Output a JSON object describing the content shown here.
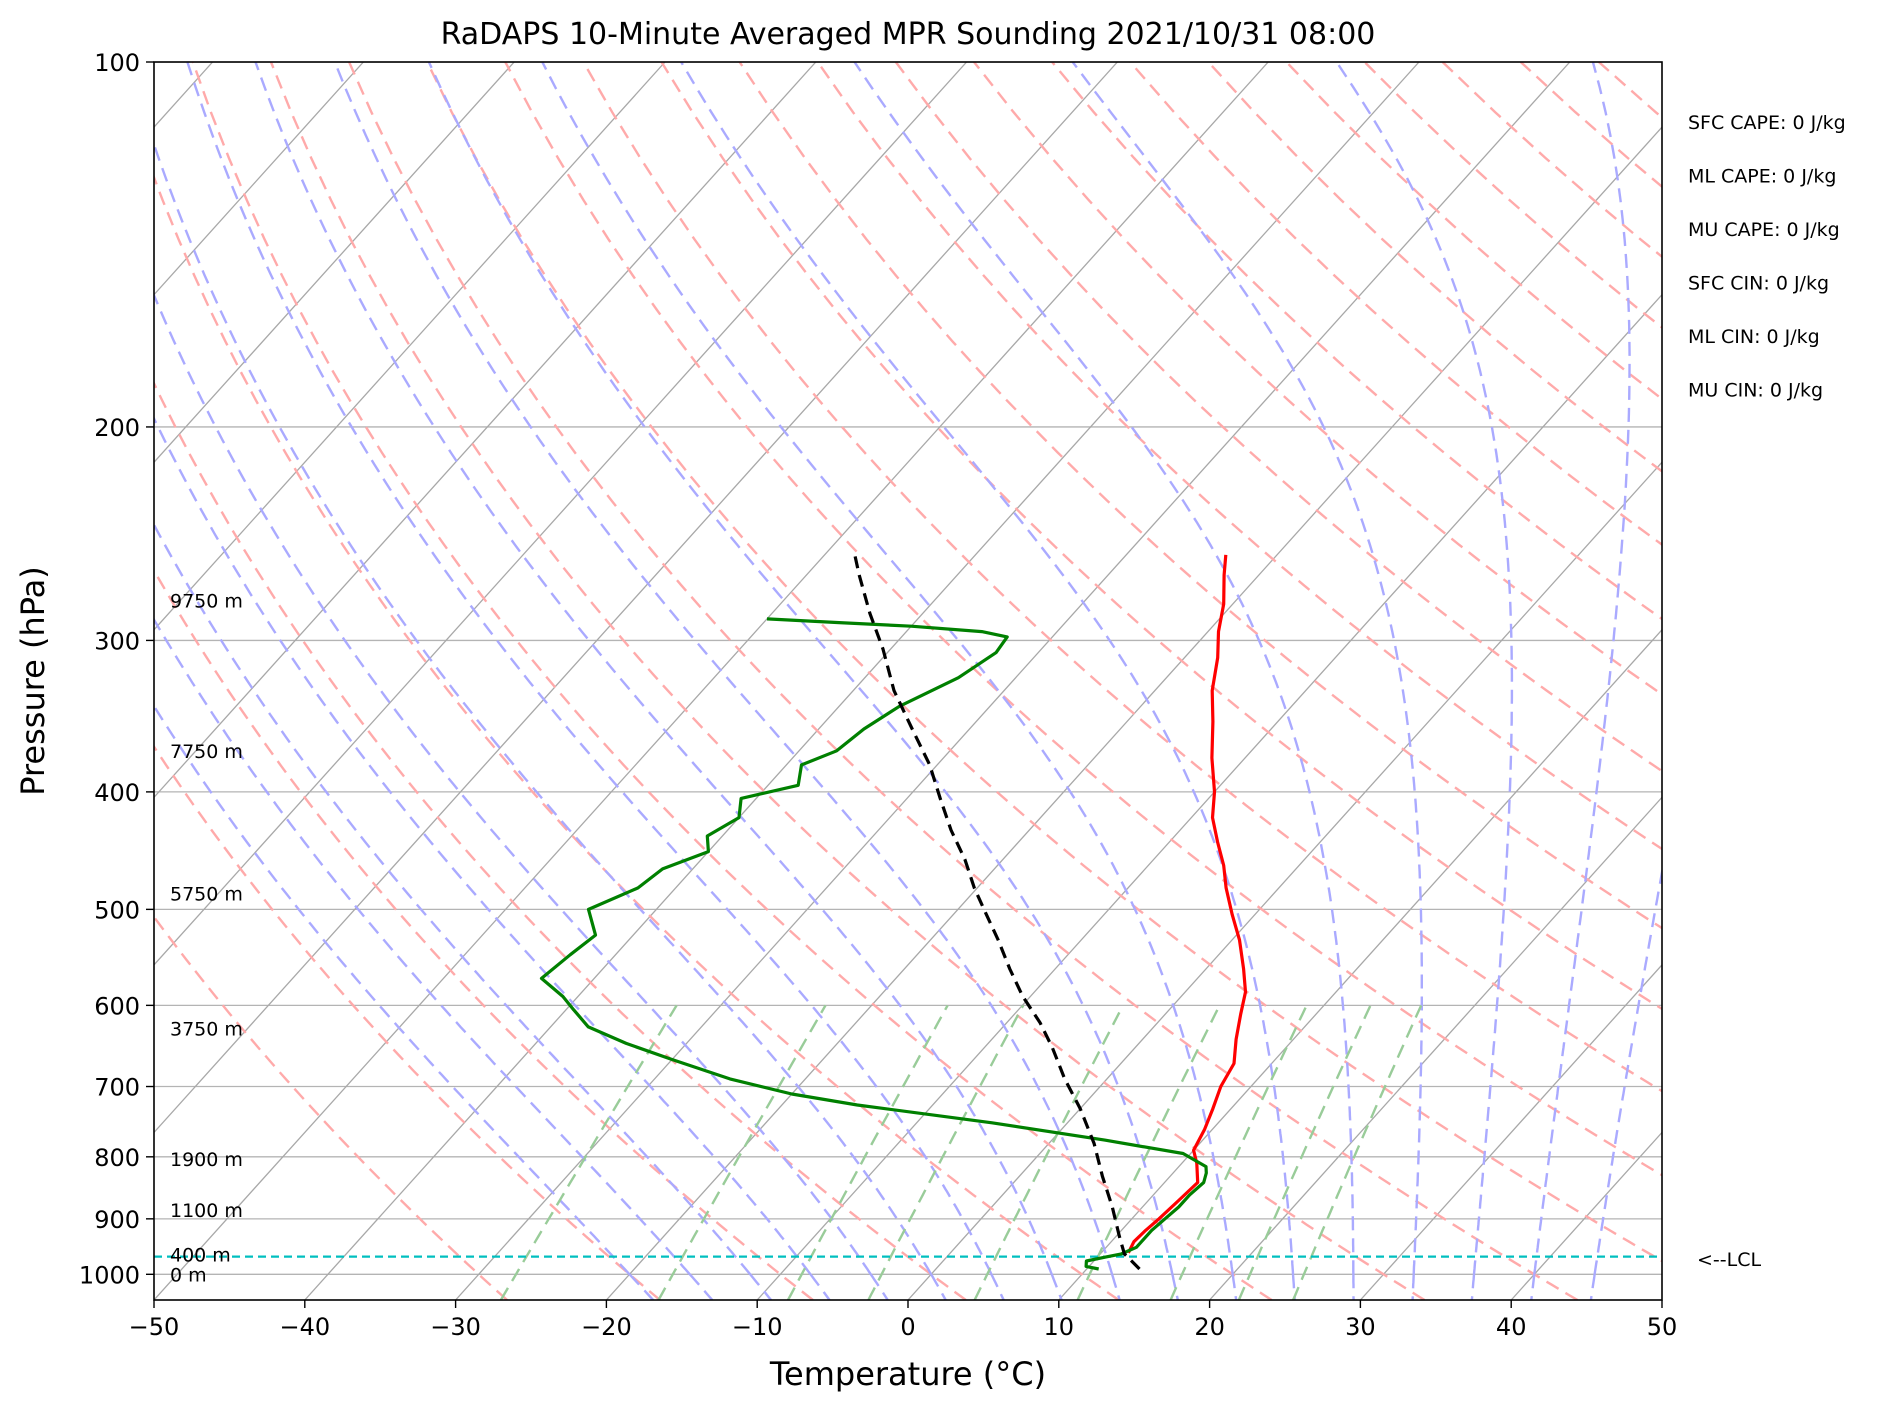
{
  "chart_data": {
    "type": "line",
    "title": "RaDAPS 10-Minute Averaged MPR Sounding 2021/10/31 08:00",
    "xlabel": "Temperature (°C)",
    "ylabel": "Pressure (hPa)",
    "xlim": [
      -50,
      50
    ],
    "ylim": [
      1050,
      100
    ],
    "y_scale": "log",
    "x_ticks": [
      -50,
      -40,
      -30,
      -20,
      -10,
      0,
      10,
      20,
      30,
      40,
      50
    ],
    "x_tick_labels": [
      "−50",
      "−40",
      "−30",
      "−20",
      "−10",
      "0",
      "10",
      "20",
      "30",
      "40",
      "50"
    ],
    "y_ticks": [
      100,
      200,
      300,
      400,
      500,
      600,
      700,
      800,
      900,
      1000
    ],
    "y_tick_labels": [
      "100",
      "200",
      "300",
      "400",
      "500",
      "600",
      "700",
      "800",
      "900",
      "1000"
    ],
    "skew": "skew-T log-P",
    "grid": true,
    "series": [
      {
        "role": "temperature",
        "color": "#ff0000",
        "points": [
          [
            11.8,
            960
          ],
          [
            11.5,
            940
          ],
          [
            11.6,
            920
          ],
          [
            11.8,
            900
          ],
          [
            12.0,
            870
          ],
          [
            12.2,
            840
          ],
          [
            11.8,
            830
          ],
          [
            11.0,
            810
          ],
          [
            10.0,
            790
          ],
          [
            9.5,
            760
          ],
          [
            8.8,
            730
          ],
          [
            8.0,
            700
          ],
          [
            7.5,
            670
          ],
          [
            6.2,
            640
          ],
          [
            5.0,
            610
          ],
          [
            4.0,
            585
          ],
          [
            2.5,
            560
          ],
          [
            0.5,
            530
          ],
          [
            -1.5,
            505
          ],
          [
            -3.5,
            480
          ],
          [
            -5.0,
            460
          ],
          [
            -6.8,
            440
          ],
          [
            -8.6,
            420
          ],
          [
            -10.0,
            400
          ],
          [
            -12.2,
            375
          ],
          [
            -14.3,
            350
          ],
          [
            -16.2,
            330
          ],
          [
            -17.8,
            310
          ],
          [
            -19.3,
            295
          ],
          [
            -20.6,
            280
          ],
          [
            -22.3,
            265
          ],
          [
            -23.4,
            255
          ]
        ]
      },
      {
        "role": "dewpoint",
        "color": "#008000",
        "points": [
          [
            10.8,
            990
          ],
          [
            9.8,
            985
          ],
          [
            9.5,
            975
          ],
          [
            10.5,
            968
          ],
          [
            11.4,
            962
          ],
          [
            12.0,
            950
          ],
          [
            12.0,
            920
          ],
          [
            12.2,
            900
          ],
          [
            12.4,
            880
          ],
          [
            12.4,
            860
          ],
          [
            12.6,
            840
          ],
          [
            12.2,
            825
          ],
          [
            11.8,
            815
          ],
          [
            9.5,
            795
          ],
          [
            3.5,
            775
          ],
          [
            -5.0,
            750
          ],
          [
            -15.0,
            725
          ],
          [
            -20.0,
            710
          ],
          [
            -25.0,
            690
          ],
          [
            -30.0,
            665
          ],
          [
            -34.0,
            645
          ],
          [
            -37.5,
            625
          ],
          [
            -39.5,
            605
          ],
          [
            -41.0,
            590
          ],
          [
            -43.5,
            570
          ],
          [
            -43.0,
            545
          ],
          [
            -42.5,
            525
          ],
          [
            -44.5,
            500
          ],
          [
            -42.5,
            480
          ],
          [
            -42.0,
            463
          ],
          [
            -40.0,
            448
          ],
          [
            -41.0,
            435
          ],
          [
            -40.0,
            420
          ],
          [
            -41.0,
            405
          ],
          [
            -38.0,
            395
          ],
          [
            -39.0,
            380
          ],
          [
            -37.5,
            370
          ],
          [
            -37.0,
            355
          ],
          [
            -36.0,
            340
          ],
          [
            -33.8,
            322
          ],
          [
            -32.8,
            307
          ],
          [
            -33.0,
            298
          ],
          [
            -35.0,
            295
          ],
          [
            -40.0,
            292
          ],
          [
            -45.0,
            290
          ],
          [
            -50.0,
            288
          ]
        ]
      },
      {
        "role": "parcel",
        "color": "#000000",
        "dash": true,
        "points": [
          [
            13.5,
            990
          ],
          [
            12.5,
            975
          ],
          [
            11.6,
            962
          ],
          [
            10.2,
            930
          ],
          [
            8.0,
            880
          ],
          [
            5.5,
            830
          ],
          [
            3.0,
            780
          ],
          [
            0.0,
            730
          ],
          [
            -2.8,
            690
          ],
          [
            -5.5,
            650
          ],
          [
            -7.8,
            620
          ],
          [
            -10.5,
            590
          ],
          [
            -13.0,
            560
          ],
          [
            -15.5,
            530
          ],
          [
            -17.8,
            505
          ],
          [
            -20.2,
            480
          ],
          [
            -22.5,
            455
          ],
          [
            -25.2,
            430
          ],
          [
            -27.8,
            405
          ],
          [
            -30.5,
            380
          ],
          [
            -33.8,
            355
          ],
          [
            -37.3,
            330
          ],
          [
            -40.5,
            305
          ],
          [
            -43.5,
            285
          ],
          [
            -46.5,
            265
          ],
          [
            -48.0,
            255
          ]
        ]
      }
    ],
    "lcl_pressure": 967,
    "lcl_label": "<--LCL",
    "height_labels": [
      {
        "text": "9750 m",
        "p": 278
      },
      {
        "text": "7750 m",
        "p": 370
      },
      {
        "text": "5750 m",
        "p": 485
      },
      {
        "text": "3750 m",
        "p": 627
      },
      {
        "text": "1900 m",
        "p": 803
      },
      {
        "text": "1100 m",
        "p": 885
      },
      {
        "text": "400 m",
        "p": 963
      },
      {
        "text": "0 m",
        "p": 1000
      }
    ],
    "indices": [
      "SFC CAPE: 0 J/kg",
      "ML CAPE: 0 J/kg",
      "MU CAPE: 0 J/kg",
      "SFC CIN: 0 J/kg",
      "ML CIN: 0 J/kg",
      "MU CIN: 0 J/kg"
    ],
    "colors": {
      "isotherm": "#a8a8a8",
      "isobar": "#b4b4b4",
      "dry_adiabat": "#ffaaaa",
      "moist_adiabat": "#aaaaff",
      "mixing_ratio": "#99cc99",
      "lcl": "#00bfbf"
    }
  }
}
